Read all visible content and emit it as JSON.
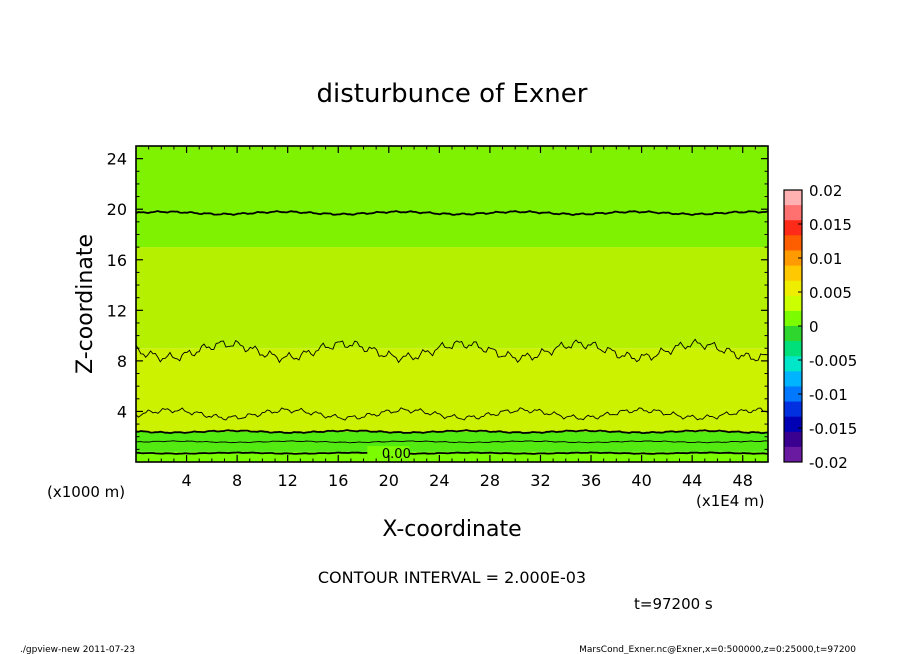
{
  "chart_data": {
    "type": "contour",
    "title": "disturbunce of Exner",
    "xlabel": "X-coordinate",
    "ylabel": "Z-coordinate",
    "x_unit": "(x1E4 m)",
    "y_unit": "(x1000 m)",
    "xlim": [
      0,
      50
    ],
    "ylim": [
      0,
      25
    ],
    "xticks": [
      4,
      8,
      12,
      16,
      20,
      24,
      28,
      32,
      36,
      40,
      44,
      48
    ],
    "yticks": [
      4,
      8,
      12,
      16,
      20,
      24
    ],
    "colorbar": {
      "range": [
        -0.02,
        0.02
      ],
      "tick_labels": [
        "0.02",
        "0.015",
        "0.01",
        "0.005",
        "0",
        "-0.005",
        "-0.01",
        "-0.015",
        "-0.02"
      ],
      "colors": [
        "#ffb0b0",
        "#ff7070",
        "#ff2a18",
        "#ff5e00",
        "#ff9b00",
        "#ffc800",
        "#f0ee00",
        "#ccff00",
        "#7cfc00",
        "#2ed62e",
        "#00e07a",
        "#00e6c8",
        "#00b4ff",
        "#0078ff",
        "#0030e0",
        "#0000b4",
        "#3a0090",
        "#6a1aa0"
      ]
    },
    "bands": [
      {
        "z_range": [
          0,
          0.8
        ],
        "color": "#7cfc00"
      },
      {
        "z_range": [
          0.8,
          2.4
        ],
        "color": "#52ea10"
      },
      {
        "z_range": [
          2.4,
          9.0
        ],
        "color": "#ccf200"
      },
      {
        "z_range": [
          9.0,
          17.0
        ],
        "color": "#b4f000"
      },
      {
        "z_range": [
          17.0,
          25
        ],
        "color": "#7ef200"
      }
    ],
    "contours": [
      {
        "z": 19.7,
        "thick": true,
        "wiggle": 0.08
      },
      {
        "z": 8.8,
        "thick": false,
        "wiggle": 0.45
      },
      {
        "z": 3.8,
        "thick": false,
        "wiggle": 0.25
      },
      {
        "z": 2.4,
        "thick": true,
        "wiggle": 0.06
      },
      {
        "z": 1.6,
        "thick": false,
        "wiggle": 0.04
      },
      {
        "z": 0.7,
        "thick": true,
        "wiggle": 0.03
      }
    ],
    "contour_label": "0.00",
    "contour_interval_text": "CONTOUR INTERVAL = 2.000E-03",
    "time_text": "t=97200 s"
  },
  "footer": {
    "left": "./gpview-new  2011-07-23",
    "right": "MarsCond_Exner.nc@Exner,x=0:500000,z=0:25000,t=97200"
  }
}
